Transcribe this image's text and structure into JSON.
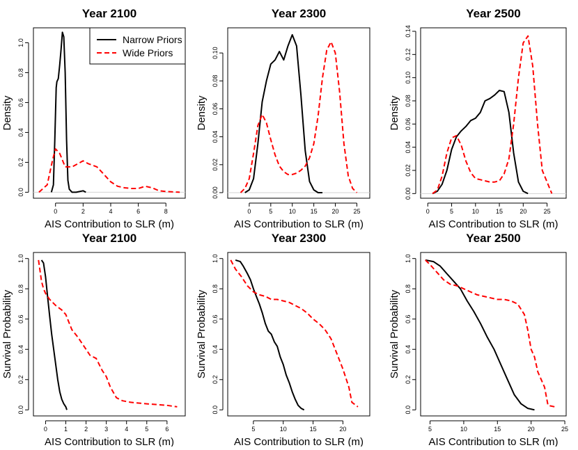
{
  "colors": {
    "narrow": "#000000",
    "wide": "#ff0000"
  },
  "legend": {
    "narrow_label": "Narrow Priors",
    "wide_label": "Wide Priors",
    "placement": "top-right of first panel"
  },
  "chart_data": [
    {
      "type": "line",
      "title": "Year 2100",
      "xlabel": "AIS Contribution to SLR (m)",
      "ylabel": "Density",
      "xlim": [
        -1.6,
        9.4
      ],
      "ylim": [
        -0.04,
        1.1
      ],
      "xticks": [
        0,
        2,
        4,
        6,
        8
      ],
      "yticks": [
        0.0,
        0.2,
        0.4,
        0.6,
        0.8,
        1.0
      ],
      "x_tick_labels": [
        "0",
        "2",
        "4",
        "6",
        "8"
      ],
      "y_tick_labels": [
        "0.0",
        "0.2",
        "0.4",
        "0.6",
        "0.8",
        "1.0"
      ],
      "series": [
        {
          "name": "Narrow Priors",
          "style": "solid",
          "x": [
            -0.3,
            -0.15,
            -0.05,
            0.05,
            0.1,
            0.2,
            0.3,
            0.4,
            0.5,
            0.6,
            0.7,
            0.8,
            0.9,
            1.0,
            1.2,
            1.5,
            2.0,
            2.2
          ],
          "y": [
            0.0,
            0.05,
            0.35,
            0.7,
            0.74,
            0.76,
            0.85,
            0.95,
            1.07,
            1.04,
            0.8,
            0.35,
            0.08,
            0.02,
            0.0,
            0.0,
            0.01,
            0.0
          ]
        },
        {
          "name": "Wide Priors",
          "style": "dashed",
          "x": [
            -1.2,
            -0.6,
            -0.2,
            0.0,
            0.3,
            0.7,
            1.2,
            1.6,
            2.0,
            2.4,
            3.0,
            3.5,
            4.0,
            4.5,
            5.0,
            5.5,
            6.0,
            6.5,
            7.0,
            7.5,
            8.0,
            9.0
          ],
          "y": [
            0.0,
            0.05,
            0.22,
            0.29,
            0.26,
            0.17,
            0.17,
            0.19,
            0.21,
            0.19,
            0.17,
            0.12,
            0.07,
            0.04,
            0.03,
            0.025,
            0.025,
            0.04,
            0.03,
            0.01,
            0.005,
            0.0
          ]
        }
      ]
    },
    {
      "type": "line",
      "title": "Year 2300",
      "xlabel": "AIS Contribution to SLR (m)",
      "ylabel": "Density",
      "xlim": [
        -5,
        28
      ],
      "ylim": [
        -0.004,
        0.118
      ],
      "xticks": [
        0,
        5,
        10,
        15,
        20,
        25
      ],
      "yticks": [
        0.0,
        0.02,
        0.04,
        0.06,
        0.08,
        0.1
      ],
      "x_tick_labels": [
        "0",
        "5",
        "10",
        "15",
        "20",
        "25"
      ],
      "y_tick_labels": [
        "0.00",
        "0.02",
        "0.04",
        "0.06",
        "0.08",
        "0.10"
      ],
      "series": [
        {
          "name": "Narrow Priors",
          "style": "solid",
          "x": [
            -1,
            0,
            1,
            2,
            3,
            4,
            5,
            6,
            7,
            8,
            9,
            10,
            11,
            12,
            13,
            14,
            15,
            16,
            17
          ],
          "y": [
            0.0,
            0.002,
            0.01,
            0.035,
            0.065,
            0.08,
            0.092,
            0.095,
            0.101,
            0.095,
            0.105,
            0.113,
            0.105,
            0.07,
            0.03,
            0.008,
            0.002,
            0.0,
            0.0
          ]
        },
        {
          "name": "Wide Priors",
          "style": "dashed",
          "x": [
            -2,
            -1,
            0,
            1,
            2,
            3,
            4,
            5,
            6,
            7,
            8,
            9,
            10,
            11,
            12,
            13,
            14,
            15,
            16,
            17,
            18,
            19,
            20,
            21,
            22,
            23,
            24,
            25
          ],
          "y": [
            0.0,
            0.003,
            0.01,
            0.028,
            0.048,
            0.056,
            0.05,
            0.038,
            0.027,
            0.019,
            0.015,
            0.013,
            0.013,
            0.014,
            0.016,
            0.019,
            0.025,
            0.035,
            0.055,
            0.082,
            0.102,
            0.108,
            0.1,
            0.072,
            0.035,
            0.012,
            0.003,
            0.0
          ]
        }
      ]
    },
    {
      "type": "line",
      "title": "Year 2500",
      "xlabel": "AIS Contribution to SLR (m)",
      "ylabel": "Density",
      "xlim": [
        -1.5,
        29
      ],
      "ylim": [
        -0.004,
        0.143
      ],
      "xticks": [
        0,
        5,
        10,
        15,
        20,
        25
      ],
      "yticks": [
        0.0,
        0.02,
        0.04,
        0.06,
        0.08,
        0.1,
        0.12,
        0.14
      ],
      "x_tick_labels": [
        "0",
        "5",
        "10",
        "15",
        "20",
        "25"
      ],
      "y_tick_labels": [
        "0.00",
        "0.02",
        "0.04",
        "0.06",
        "0.08",
        "0.10",
        "0.12",
        "0.14"
      ],
      "series": [
        {
          "name": "Narrow Priors",
          "style": "solid",
          "x": [
            1,
            2,
            3,
            4,
            5,
            6,
            7,
            8,
            9,
            10,
            11,
            12,
            13,
            14,
            15,
            16,
            17,
            18,
            19,
            20,
            21
          ],
          "y": [
            0.0,
            0.002,
            0.008,
            0.02,
            0.038,
            0.049,
            0.054,
            0.058,
            0.063,
            0.065,
            0.07,
            0.08,
            0.082,
            0.085,
            0.089,
            0.088,
            0.07,
            0.035,
            0.01,
            0.002,
            0.0
          ]
        },
        {
          "name": "Wide Priors",
          "style": "dashed",
          "x": [
            1,
            2,
            3,
            4,
            5,
            6,
            7,
            8,
            9,
            10,
            11,
            12,
            13,
            14,
            15,
            16,
            17,
            18,
            19,
            20,
            21,
            22,
            23,
            24,
            26
          ],
          "y": [
            0.0,
            0.003,
            0.015,
            0.035,
            0.048,
            0.05,
            0.042,
            0.028,
            0.018,
            0.013,
            0.012,
            0.011,
            0.01,
            0.01,
            0.011,
            0.017,
            0.03,
            0.06,
            0.1,
            0.13,
            0.136,
            0.11,
            0.06,
            0.02,
            0.0
          ]
        }
      ]
    },
    {
      "type": "line",
      "title": "Year 2100",
      "xlabel": "AIS Contribution to SLR (m)",
      "ylabel": "Survival Probability",
      "xlim": [
        -0.6,
        6.9
      ],
      "ylim": [
        -0.04,
        1.04
      ],
      "xticks": [
        0,
        1,
        2,
        3,
        4,
        5,
        6
      ],
      "yticks": [
        0.0,
        0.2,
        0.4,
        0.6,
        0.8,
        1.0
      ],
      "x_tick_labels": [
        "0",
        "1",
        "2",
        "3",
        "4",
        "5",
        "6"
      ],
      "y_tick_labels": [
        "0.0",
        "0.2",
        "0.4",
        "0.6",
        "0.8",
        "1.0"
      ],
      "series": [
        {
          "name": "Narrow Priors",
          "style": "solid",
          "x": [
            -0.2,
            -0.1,
            0.0,
            0.1,
            0.2,
            0.3,
            0.4,
            0.5,
            0.6,
            0.7,
            0.8,
            0.9,
            1.0,
            1.05
          ],
          "y": [
            0.99,
            0.97,
            0.88,
            0.75,
            0.62,
            0.5,
            0.4,
            0.3,
            0.2,
            0.12,
            0.07,
            0.04,
            0.02,
            0.0
          ]
        },
        {
          "name": "Wide Priors",
          "style": "dashed",
          "x": [
            -0.35,
            -0.2,
            -0.1,
            0.0,
            0.2,
            0.5,
            0.8,
            1.0,
            1.3,
            1.6,
            2.0,
            2.2,
            2.5,
            2.8,
            3.0,
            3.2,
            3.5,
            3.8,
            4.2,
            5.0,
            6.0,
            6.5
          ],
          "y": [
            0.99,
            0.85,
            0.8,
            0.77,
            0.73,
            0.69,
            0.66,
            0.63,
            0.53,
            0.48,
            0.4,
            0.36,
            0.34,
            0.26,
            0.22,
            0.15,
            0.08,
            0.06,
            0.05,
            0.04,
            0.03,
            0.02
          ]
        }
      ]
    },
    {
      "type": "line",
      "title": "Year 2300",
      "xlabel": "AIS Contribution to SLR (m)",
      "ylabel": "Survival Probability",
      "xlim": [
        0.7,
        24.5
      ],
      "ylim": [
        -0.04,
        1.04
      ],
      "xticks": [
        5,
        10,
        15,
        20
      ],
      "yticks": [
        0.0,
        0.2,
        0.4,
        0.6,
        0.8,
        1.0
      ],
      "x_tick_labels": [
        "5",
        "10",
        "15",
        "20"
      ],
      "y_tick_labels": [
        "0.0",
        "0.2",
        "0.4",
        "0.6",
        "0.8",
        "1.0"
      ],
      "series": [
        {
          "name": "Narrow Priors",
          "style": "solid",
          "x": [
            2,
            2.8,
            3.3,
            4,
            4.5,
            5,
            5.5,
            6,
            6.5,
            7,
            7.5,
            8,
            8.5,
            9,
            9.5,
            10,
            10.5,
            11,
            11.5,
            12,
            12.5,
            13,
            13.5
          ],
          "y": [
            0.99,
            0.98,
            0.95,
            0.9,
            0.86,
            0.8,
            0.75,
            0.7,
            0.64,
            0.57,
            0.52,
            0.5,
            0.45,
            0.42,
            0.35,
            0.3,
            0.23,
            0.18,
            0.12,
            0.07,
            0.03,
            0.01,
            0.0
          ]
        },
        {
          "name": "Wide Priors",
          "style": "dashed",
          "x": [
            1.2,
            2,
            3,
            4,
            5,
            6,
            7,
            8,
            9,
            10,
            11,
            12,
            13,
            14,
            15,
            16,
            17,
            18,
            19,
            20,
            21,
            21.5,
            22.5
          ],
          "y": [
            0.99,
            0.93,
            0.88,
            0.82,
            0.78,
            0.76,
            0.75,
            0.73,
            0.73,
            0.72,
            0.71,
            0.69,
            0.67,
            0.64,
            0.6,
            0.57,
            0.53,
            0.47,
            0.37,
            0.27,
            0.15,
            0.05,
            0.02
          ]
        }
      ]
    },
    {
      "type": "line",
      "title": "Year 2500",
      "xlabel": "AIS Contribution to SLR (m)",
      "ylabel": "Survival Probability",
      "xlim": [
        3.6,
        25.2
      ],
      "ylim": [
        -0.04,
        1.04
      ],
      "xticks": [
        5,
        10,
        15,
        20,
        25
      ],
      "yticks": [
        0.0,
        0.2,
        0.4,
        0.6,
        0.8,
        1.0
      ],
      "x_tick_labels": [
        "5",
        "10",
        "15",
        "20",
        "25"
      ],
      "y_tick_labels": [
        "0.0",
        "0.2",
        "0.4",
        "0.6",
        "0.8",
        "1.0"
      ],
      "series": [
        {
          "name": "Narrow Priors",
          "style": "solid",
          "x": [
            4.3,
            5.5,
            6.5,
            7.5,
            8.5,
            9.5,
            10.5,
            11.5,
            12.5,
            13.5,
            14.5,
            15.5,
            16.5,
            17.5,
            18.5,
            19.5,
            20.5
          ],
          "y": [
            0.99,
            0.98,
            0.95,
            0.9,
            0.85,
            0.8,
            0.72,
            0.65,
            0.57,
            0.48,
            0.4,
            0.3,
            0.2,
            0.1,
            0.04,
            0.01,
            0.0
          ]
        },
        {
          "name": "Wide Priors",
          "style": "dashed",
          "x": [
            4.3,
            5,
            6,
            7,
            8,
            9,
            10,
            11,
            12,
            13,
            14,
            15,
            16,
            17,
            18,
            19,
            19.5,
            20,
            20.5,
            21,
            21.5,
            22,
            22.5,
            23.5
          ],
          "y": [
            0.99,
            0.96,
            0.91,
            0.86,
            0.83,
            0.82,
            0.8,
            0.78,
            0.76,
            0.75,
            0.74,
            0.73,
            0.73,
            0.72,
            0.7,
            0.63,
            0.53,
            0.4,
            0.35,
            0.25,
            0.2,
            0.15,
            0.03,
            0.02
          ]
        }
      ]
    }
  ]
}
